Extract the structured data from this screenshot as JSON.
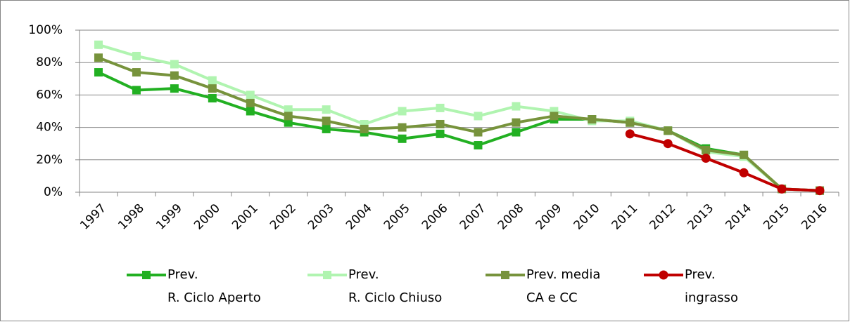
{
  "chart_data": {
    "type": "line",
    "categories": [
      "1997",
      "1998",
      "1999",
      "2000",
      "2001",
      "2002",
      "2003",
      "2004",
      "2005",
      "2006",
      "2007",
      "2008",
      "2009",
      "2010",
      "2011",
      "2012",
      "2013",
      "2014",
      "2015",
      "2016"
    ],
    "series": [
      {
        "name": "Prev.\nR. Ciclo Aperto",
        "color": "#22b022",
        "marker": "square",
        "values": [
          74,
          63,
          64,
          58,
          50,
          43,
          39,
          37,
          33,
          36,
          29,
          37,
          45,
          45,
          43,
          38,
          27,
          23,
          2,
          1
        ]
      },
      {
        "name": "Prev.\nR. Ciclo Chiuso",
        "color": "#b0f4b0",
        "marker": "square",
        "values": [
          91,
          84,
          79,
          69,
          60,
          51,
          51,
          42,
          50,
          52,
          47,
          53,
          50,
          44,
          44,
          38,
          25,
          22,
          2,
          1
        ]
      },
      {
        "name": "Prev. media\nCA e CC",
        "color": "#77933c",
        "marker": "square",
        "values": [
          83,
          74,
          72,
          64,
          55,
          47,
          44,
          39,
          40,
          42,
          37,
          43,
          47,
          45,
          43,
          38,
          26,
          23,
          2,
          1
        ]
      },
      {
        "name": "Prev.\ningrasso",
        "color": "#c00000",
        "marker": "circle",
        "values": [
          null,
          null,
          null,
          null,
          null,
          null,
          null,
          null,
          null,
          null,
          null,
          null,
          null,
          null,
          36,
          30,
          21,
          12,
          2,
          1
        ]
      }
    ],
    "ylim": [
      0,
      100
    ],
    "yticks": [
      {
        "value": 0,
        "label": "0%"
      },
      {
        "value": 20,
        "label": "20%"
      },
      {
        "value": 40,
        "label": "40%"
      },
      {
        "value": 60,
        "label": "60%"
      },
      {
        "value": 80,
        "label": "80%"
      },
      {
        "value": 100,
        "label": "100%"
      }
    ],
    "grid": true,
    "legend": "bottom"
  }
}
